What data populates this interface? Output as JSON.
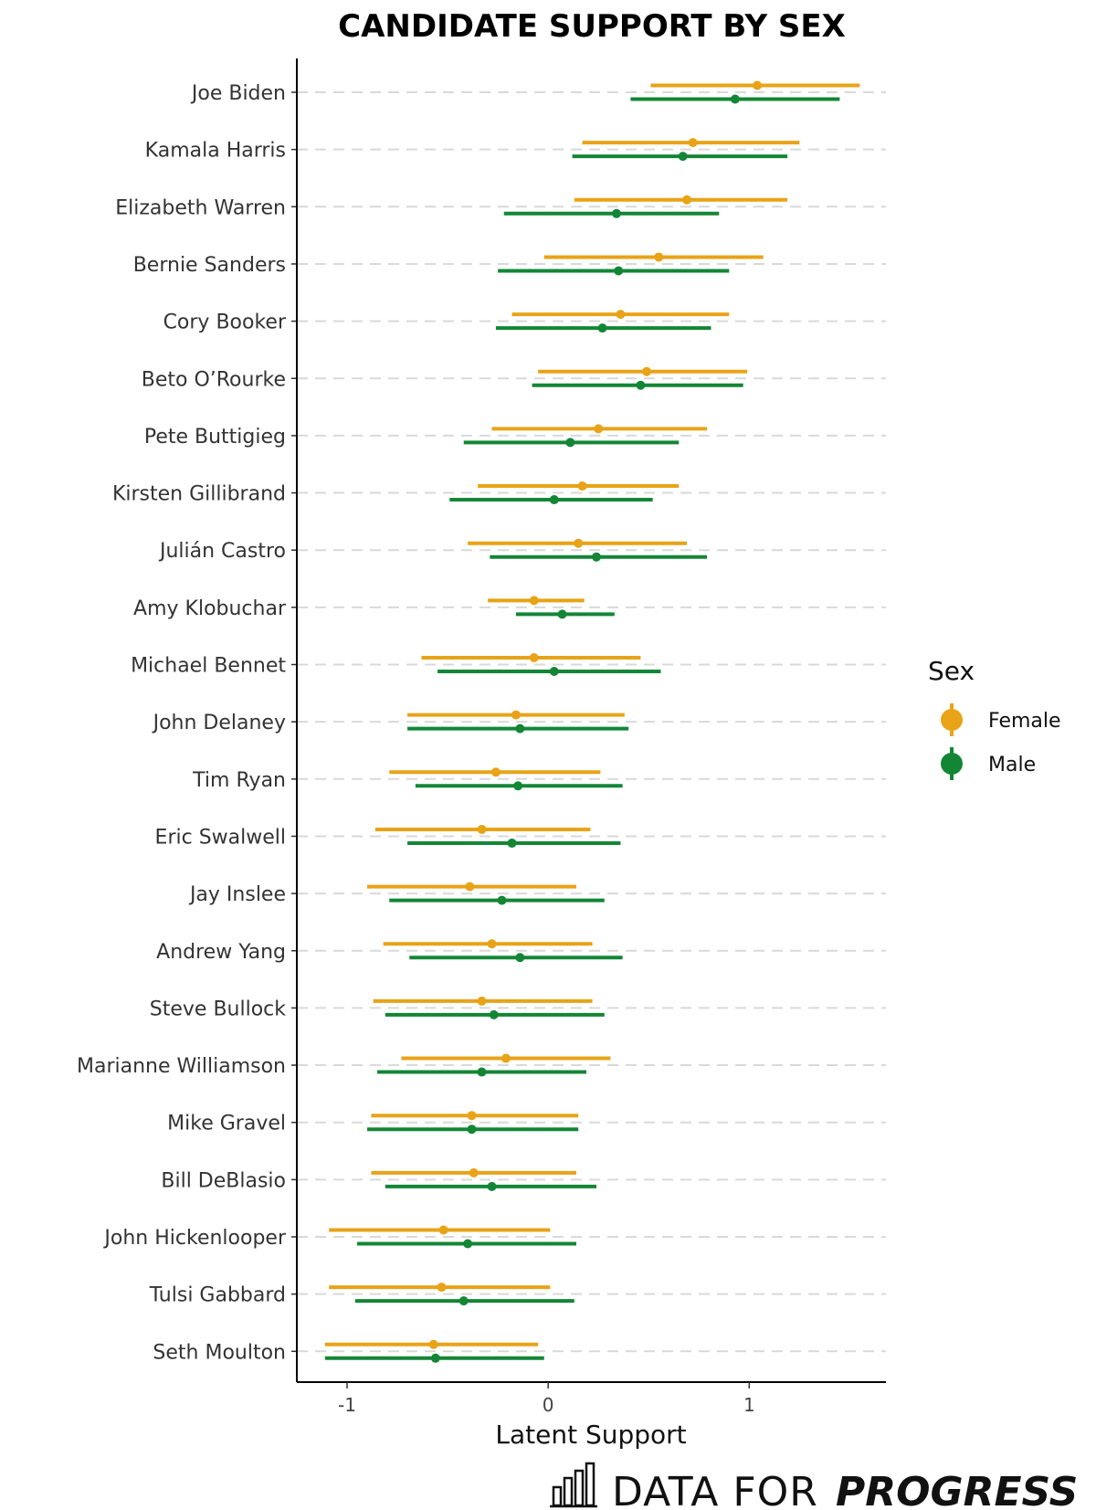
{
  "chart_data": {
    "type": "errorbar",
    "title": "CANDIDATE SUPPORT BY SEX",
    "xlabel": "Latent Support",
    "ylabel": "",
    "xlim": [
      -1.25,
      1.68
    ],
    "xticks": [
      -1,
      0,
      1
    ],
    "xtick_labels": [
      "-1",
      "0",
      "1"
    ],
    "legend": {
      "title": "Sex",
      "position": "right"
    },
    "grid": "horizontal dashed",
    "categories": [
      "Joe Biden",
      "Kamala Harris",
      "Elizabeth Warren",
      "Bernie Sanders",
      "Cory Booker",
      "Beto O’Rourke",
      "Pete Buttigieg",
      "Kirsten Gillibrand",
      "Julián Castro",
      "Amy Klobuchar",
      "Michael Bennet",
      "John Delaney",
      "Tim Ryan",
      "Eric Swalwell",
      "Jay Inslee",
      "Andrew Yang",
      "Steve Bullock",
      "Marianne Williamson",
      "Mike Gravel",
      "Bill DeBlasio",
      "John Hickenlooper",
      "Tulsi Gabbard",
      "Seth Moulton"
    ],
    "series": [
      {
        "name": "Female",
        "color": "#E8A317",
        "estimate": [
          1.04,
          0.72,
          0.69,
          0.55,
          0.36,
          0.49,
          0.25,
          0.17,
          0.15,
          -0.07,
          -0.07,
          -0.16,
          -0.26,
          -0.33,
          -0.39,
          -0.28,
          -0.33,
          -0.21,
          -0.38,
          -0.37,
          -0.52,
          -0.53,
          -0.57
        ],
        "lower": [
          0.51,
          0.17,
          0.13,
          -0.02,
          -0.18,
          -0.05,
          -0.28,
          -0.35,
          -0.4,
          -0.3,
          -0.63,
          -0.7,
          -0.79,
          -0.86,
          -0.9,
          -0.82,
          -0.87,
          -0.73,
          -0.88,
          -0.88,
          -1.09,
          -1.09,
          -1.11
        ],
        "upper": [
          1.55,
          1.25,
          1.19,
          1.07,
          0.9,
          0.99,
          0.79,
          0.65,
          0.69,
          0.18,
          0.46,
          0.38,
          0.26,
          0.21,
          0.14,
          0.22,
          0.22,
          0.31,
          0.15,
          0.14,
          0.01,
          0.01,
          -0.05
        ]
      },
      {
        "name": "Male",
        "color": "#138636",
        "estimate": [
          0.93,
          0.67,
          0.34,
          0.35,
          0.27,
          0.46,
          0.11,
          0.03,
          0.24,
          0.07,
          0.03,
          -0.14,
          -0.15,
          -0.18,
          -0.23,
          -0.14,
          -0.27,
          -0.33,
          -0.38,
          -0.28,
          -0.4,
          -0.42,
          -0.56
        ],
        "lower": [
          0.41,
          0.12,
          -0.22,
          -0.25,
          -0.26,
          -0.08,
          -0.42,
          -0.49,
          -0.29,
          -0.16,
          -0.55,
          -0.7,
          -0.66,
          -0.7,
          -0.79,
          -0.69,
          -0.81,
          -0.85,
          -0.9,
          -0.81,
          -0.95,
          -0.96,
          -1.11
        ],
        "upper": [
          1.45,
          1.19,
          0.85,
          0.9,
          0.81,
          0.97,
          0.65,
          0.52,
          0.79,
          0.33,
          0.56,
          0.4,
          0.37,
          0.36,
          0.28,
          0.37,
          0.28,
          0.19,
          0.15,
          0.24,
          0.14,
          0.13,
          -0.02
        ]
      }
    ]
  },
  "branding": {
    "name_light": "DATA FOR",
    "name_bold": "PROGRESS"
  }
}
